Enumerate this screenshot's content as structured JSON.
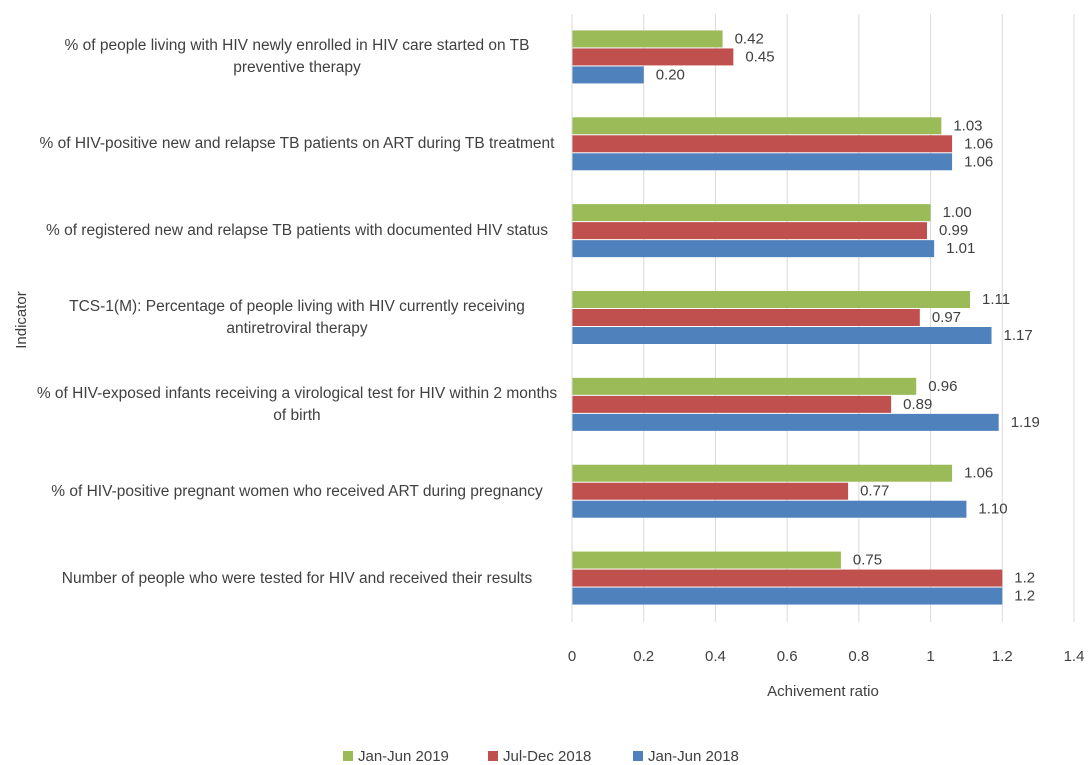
{
  "chart_data": {
    "type": "hbar",
    "x_label": "Achivement ratio",
    "y_label": "Indicator",
    "categories": [
      "% of people living with HIV newly enrolled in HIV care started on TB preventive therapy",
      "% of HIV-positive new and relapse TB patients on ART during TB treatment",
      "% of registered new and relapse TB patients with documented HIV status",
      "TCS-1(M): Percentage of people living with HIV currently receiving antiretroviral therapy",
      "% of HIV-exposed infants receiving a virological test for HIV within 2 months of birth",
      "% of HIV-positive pregnant women who received ART during pregnancy",
      "Number of people who were tested for HIV and received their results"
    ],
    "series": [
      {
        "name": "Jan-Jun 2019",
        "color": "#9bbb59",
        "values": [
          0.42,
          1.03,
          1.0,
          1.11,
          0.96,
          1.06,
          0.75
        ],
        "value_labels": [
          "0.42",
          "1.03",
          "1.00",
          "1.11",
          "0.96",
          "1.06",
          "0.75"
        ]
      },
      {
        "name": "Jul-Dec 2018",
        "color": "#c0504d",
        "values": [
          0.45,
          1.06,
          0.99,
          0.97,
          0.89,
          0.77,
          1.2
        ],
        "value_labels": [
          "0.45",
          "1.06",
          "0.99",
          "0.97",
          "0.89",
          "0.77",
          "1.2"
        ]
      },
      {
        "name": "Jan-Jun 2018",
        "color": "#4f81bd",
        "values": [
          0.2,
          1.06,
          1.01,
          1.17,
          1.19,
          1.1,
          1.2
        ],
        "value_labels": [
          "0.20",
          "1.06",
          "1.01",
          "1.17",
          "1.19",
          "1.10",
          "1.2"
        ]
      }
    ],
    "xlim": [
      0,
      1.4
    ],
    "xticks": [
      0,
      0.2,
      0.4,
      0.6,
      0.8,
      1,
      1.2,
      1.4
    ],
    "grid": true,
    "legend": "bottom"
  }
}
